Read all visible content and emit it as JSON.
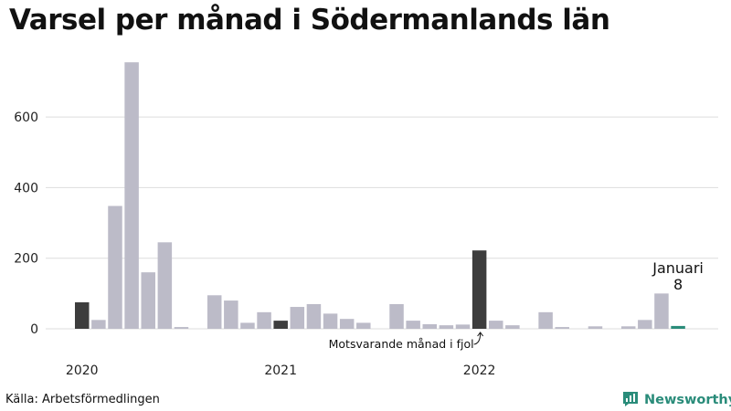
{
  "title": "Varsel per månad i Södermanlands län",
  "source": "Källa: Arbetsförmedlingen",
  "brand": {
    "name": "Newsworthy",
    "color": "#2a8c7a",
    "icon": "bar-chart-logo-icon"
  },
  "colors": {
    "default": "#bcbbc8",
    "highlight": "#3d3d3d",
    "current": "#2a8c7a",
    "grid": "#dddddd"
  },
  "chart_data": {
    "type": "bar",
    "title": "Varsel per månad i Södermanlands län",
    "xlabel": "",
    "ylabel": "",
    "ylim": [
      0,
      780
    ],
    "yticks": [
      0,
      200,
      400,
      600
    ],
    "grid": true,
    "year_labels": [
      {
        "label": "2020",
        "index": 0
      },
      {
        "label": "2021",
        "index": 12
      },
      {
        "label": "2022",
        "index": 24
      }
    ],
    "annotations": {
      "highlight_label": "Motsvarande månad i fjol",
      "current_month": "Januari",
      "current_value": "8"
    },
    "series": [
      {
        "values": [
          75,
          25,
          348,
          755,
          160,
          245,
          5,
          0,
          95,
          80,
          17,
          47,
          23,
          62,
          70,
          43,
          28,
          17,
          0,
          70,
          23,
          13,
          10,
          12,
          222,
          23,
          10,
          0,
          47,
          5,
          0,
          7,
          0,
          7,
          25,
          100,
          8
        ],
        "highlight_indices": [
          0,
          12,
          24
        ],
        "current_index": 36
      }
    ]
  }
}
